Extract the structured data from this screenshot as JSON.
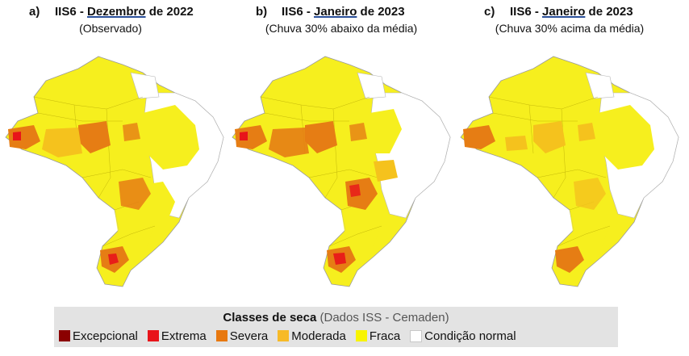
{
  "panels": [
    {
      "letter": "a)",
      "prefix": "IIS6 - ",
      "month": "Dezembro",
      "suffix": " de 2022",
      "subtitle": "(Observado)"
    },
    {
      "letter": "b)",
      "prefix": "IIS6 - ",
      "month": "Janeiro",
      "suffix": " de 2023",
      "subtitle": "(Chuva 30% abaixo da média)"
    },
    {
      "letter": "c)",
      "prefix": "IIS6 - ",
      "month": "Janeiro",
      "suffix": " de 2023",
      "subtitle": "(Chuva 30% acima da média)"
    }
  ],
  "legend": {
    "title_bold": "Classes de seca",
    "title_source": "(Dados ISS - Cemaden)",
    "items": [
      {
        "label": "Excepcional",
        "color": "#8b0000"
      },
      {
        "label": "Extrema",
        "color": "#e8141a"
      },
      {
        "label": "Severa",
        "color": "#e8780f"
      },
      {
        "label": "Moderada",
        "color": "#f7ba27"
      },
      {
        "label": "Fraca",
        "color": "#f8f400"
      },
      {
        "label": "Condição normal",
        "color": "#ffffff"
      }
    ]
  },
  "colors": {
    "fraca": "#f6ef1e",
    "moderada": "#f5c21d",
    "severa": "#e67d14",
    "extrema": "#e8141a",
    "normal": "#ffffff",
    "border": "#9a9a9a"
  }
}
